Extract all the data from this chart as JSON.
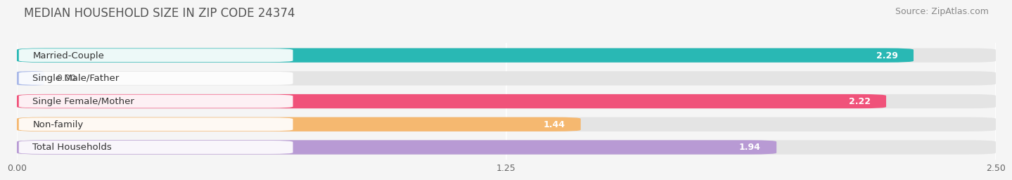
{
  "title": "MEDIAN HOUSEHOLD SIZE IN ZIP CODE 24374",
  "source": "Source: ZipAtlas.com",
  "categories": [
    "Married-Couple",
    "Single Male/Father",
    "Single Female/Mother",
    "Non-family",
    "Total Households"
  ],
  "values": [
    2.29,
    0.0,
    2.22,
    1.44,
    1.94
  ],
  "bar_colors": [
    "#29b8b4",
    "#a8b8e8",
    "#f0527a",
    "#f5b870",
    "#b89ad4"
  ],
  "xlim": [
    0,
    2.5
  ],
  "xticks": [
    0.0,
    1.25,
    2.5
  ],
  "xtick_labels": [
    "0.00",
    "1.25",
    "2.50"
  ],
  "title_fontsize": 12,
  "source_fontsize": 9,
  "label_fontsize": 9.5,
  "value_fontsize": 9,
  "background_color": "#f5f5f5",
  "bar_bg_color": "#e4e4e4",
  "bar_height": 0.62,
  "bar_gap": 0.38
}
